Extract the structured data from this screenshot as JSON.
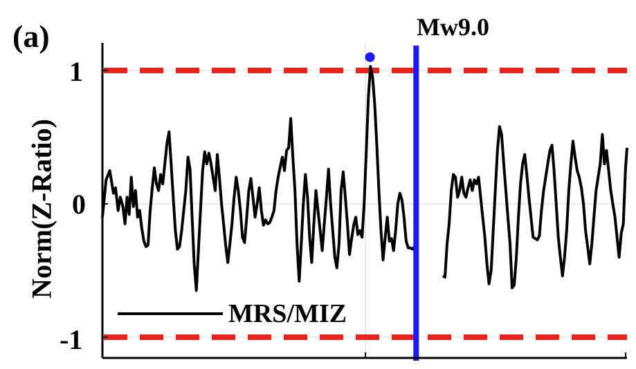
{
  "panel_label": "(a)",
  "event_label": "Mw9.0",
  "chart_data": {
    "type": "line",
    "ylabel": "Norm(Z-Ratio)",
    "ylim": [
      -1.1,
      1.2
    ],
    "yticks": [
      {
        "value": 1,
        "label": "1"
      },
      {
        "value": 0,
        "label": "0"
      },
      {
        "value": -1,
        "label": "-1"
      }
    ],
    "grid": true,
    "legend": {
      "label": "MRS/MIZ",
      "placement": "bottom-left"
    },
    "thresholds": [
      {
        "value": 1,
        "color": "#e8221c",
        "style": "dashed"
      },
      {
        "value": -1,
        "color": "#e8221c",
        "style": "dashed"
      }
    ],
    "event_marker": {
      "x": 0.598,
      "label": "Mw9.0",
      "color": "#1a1aff"
    },
    "peak_marker": {
      "x": 0.51,
      "y": 1.1,
      "color": "#1a1aff"
    },
    "series": [
      {
        "name": "MRS/MIZ",
        "color": "#000000",
        "segments": [
          [
            [
              0.0,
              -0.1
            ],
            [
              0.007,
              0.18
            ],
            [
              0.014,
              0.25
            ],
            [
              0.021,
              0.08
            ],
            [
              0.025,
              0.12
            ],
            [
              0.03,
              -0.05
            ],
            [
              0.034,
              0.05
            ],
            [
              0.039,
              -0.02
            ],
            [
              0.043,
              -0.15
            ],
            [
              0.047,
              0.05
            ],
            [
              0.051,
              -0.08
            ],
            [
              0.055,
              0.2
            ],
            [
              0.059,
              -0.02
            ],
            [
              0.063,
              0.1
            ],
            [
              0.067,
              -0.1
            ],
            [
              0.071,
              -0.05
            ],
            [
              0.075,
              -0.18
            ],
            [
              0.079,
              -0.28
            ],
            [
              0.083,
              -0.32
            ],
            [
              0.087,
              -0.31
            ],
            [
              0.091,
              -0.05
            ],
            [
              0.095,
              0.12
            ],
            [
              0.099,
              0.27
            ],
            [
              0.103,
              0.15
            ],
            [
              0.107,
              0.1
            ],
            [
              0.111,
              0.22
            ],
            [
              0.115,
              0.15
            ],
            [
              0.119,
              0.3
            ],
            [
              0.123,
              0.45
            ],
            [
              0.127,
              0.54
            ],
            [
              0.131,
              0.3
            ],
            [
              0.135,
              0.05
            ],
            [
              0.139,
              -0.2
            ],
            [
              0.143,
              -0.34
            ],
            [
              0.147,
              -0.32
            ],
            [
              0.151,
              -0.2
            ],
            [
              0.155,
              -0.05
            ],
            [
              0.159,
              0.1
            ],
            [
              0.163,
              0.35
            ],
            [
              0.167,
              0.26
            ],
            [
              0.171,
              -0.1
            ],
            [
              0.175,
              -0.45
            ],
            [
              0.179,
              -0.65
            ],
            [
              0.183,
              -0.35
            ],
            [
              0.187,
              -0.05
            ],
            [
              0.191,
              0.25
            ],
            [
              0.195,
              0.39
            ],
            [
              0.199,
              0.3
            ],
            [
              0.203,
              0.38
            ],
            [
              0.207,
              0.3
            ],
            [
              0.211,
              0.2
            ],
            [
              0.215,
              0.1
            ],
            [
              0.219,
              0.37
            ],
            [
              0.223,
              0.2
            ],
            [
              0.227,
              0.0
            ],
            [
              0.231,
              -0.15
            ],
            [
              0.235,
              -0.31
            ],
            [
              0.239,
              -0.44
            ],
            [
              0.243,
              -0.3
            ],
            [
              0.247,
              -0.15
            ],
            [
              0.251,
              0.05
            ],
            [
              0.255,
              0.2
            ],
            [
              0.259,
              0.1
            ],
            [
              0.263,
              -0.05
            ],
            [
              0.267,
              -0.25
            ],
            [
              0.271,
              -0.29
            ],
            [
              0.275,
              -0.1
            ],
            [
              0.279,
              0.1
            ],
            [
              0.283,
              0.19
            ],
            [
              0.287,
              0.05
            ],
            [
              0.291,
              -0.1
            ],
            [
              0.295,
              0.0
            ],
            [
              0.299,
              0.12
            ],
            [
              0.303,
              -0.05
            ],
            [
              0.307,
              -0.16
            ],
            [
              0.311,
              -0.12
            ],
            [
              0.315,
              -0.15
            ],
            [
              0.319,
              -0.14
            ],
            [
              0.323,
              -0.1
            ],
            [
              0.327,
              -0.05
            ],
            [
              0.331,
              0.1
            ],
            [
              0.335,
              0.2
            ],
            [
              0.339,
              0.28
            ],
            [
              0.343,
              0.35
            ],
            [
              0.347,
              0.25
            ],
            [
              0.351,
              0.4
            ],
            [
              0.355,
              0.42
            ],
            [
              0.359,
              0.64
            ],
            [
              0.363,
              0.35
            ],
            [
              0.367,
              0.1
            ],
            [
              0.371,
              -0.3
            ],
            [
              0.375,
              -0.58
            ],
            [
              0.379,
              -0.3
            ],
            [
              0.383,
              0.0
            ],
            [
              0.387,
              0.22
            ],
            [
              0.391,
              0.05
            ],
            [
              0.395,
              -0.25
            ],
            [
              0.399,
              -0.44
            ],
            [
              0.403,
              -0.15
            ],
            [
              0.407,
              0.1
            ],
            [
              0.411,
              -0.05
            ],
            [
              0.415,
              -0.2
            ],
            [
              0.419,
              -0.35
            ],
            [
              0.423,
              -0.15
            ],
            [
              0.427,
              0.05
            ],
            [
              0.431,
              0.26
            ],
            [
              0.435,
              0.0
            ],
            [
              0.439,
              -0.2
            ],
            [
              0.443,
              -0.4
            ],
            [
              0.447,
              -0.48
            ],
            [
              0.451,
              -0.3
            ],
            [
              0.455,
              0.1
            ],
            [
              0.459,
              0.24
            ],
            [
              0.463,
              0.05
            ],
            [
              0.467,
              -0.15
            ],
            [
              0.471,
              -0.38
            ],
            [
              0.475,
              -0.26
            ],
            [
              0.479,
              -0.16
            ],
            [
              0.483,
              -0.1
            ],
            [
              0.487,
              -0.23
            ],
            [
              0.491,
              -0.2
            ],
            [
              0.495,
              -0.25
            ],
            [
              0.499,
              0.0
            ],
            [
              0.503,
              0.4
            ],
            [
              0.507,
              0.8
            ],
            [
              0.511,
              1.03
            ],
            [
              0.515,
              0.95
            ],
            [
              0.519,
              0.75
            ],
            [
              0.523,
              0.45
            ],
            [
              0.527,
              0.1
            ],
            [
              0.531,
              -0.2
            ],
            [
              0.535,
              -0.42
            ],
            [
              0.539,
              -0.25
            ],
            [
              0.543,
              -0.1
            ],
            [
              0.547,
              -0.28
            ],
            [
              0.551,
              -0.26
            ],
            [
              0.555,
              -0.35
            ],
            [
              0.559,
              -0.2
            ],
            [
              0.563,
              0.0
            ],
            [
              0.567,
              0.08
            ],
            [
              0.571,
              0.03
            ],
            [
              0.575,
              -0.1
            ],
            [
              0.579,
              -0.28
            ],
            [
              0.583,
              -0.33
            ],
            [
              0.587,
              -0.33
            ],
            [
              0.591,
              -0.34
            ],
            [
              0.595,
              -0.32
            ]
          ],
          [
            [
              0.649,
              -0.54
            ],
            [
              0.653,
              -0.55
            ],
            [
              0.657,
              -0.3
            ],
            [
              0.661,
              -0.15
            ],
            [
              0.665,
              0.1
            ],
            [
              0.669,
              0.22
            ],
            [
              0.673,
              0.2
            ],
            [
              0.677,
              0.05
            ],
            [
              0.681,
              0.1
            ],
            [
              0.685,
              0.2
            ],
            [
              0.689,
              0.08
            ],
            [
              0.693,
              0.05
            ],
            [
              0.697,
              0.12
            ],
            [
              0.701,
              0.18
            ],
            [
              0.705,
              0.1
            ],
            [
              0.709,
              0.18
            ],
            [
              0.713,
              0.15
            ],
            [
              0.717,
              0.2
            ],
            [
              0.721,
              0.05
            ],
            [
              0.725,
              -0.1
            ],
            [
              0.729,
              -0.25
            ],
            [
              0.733,
              -0.45
            ],
            [
              0.737,
              -0.6
            ],
            [
              0.741,
              -0.5
            ],
            [
              0.745,
              -0.2
            ],
            [
              0.749,
              0.1
            ],
            [
              0.753,
              0.4
            ],
            [
              0.757,
              0.58
            ],
            [
              0.761,
              0.52
            ],
            [
              0.765,
              0.3
            ],
            [
              0.769,
              0.1
            ],
            [
              0.773,
              -0.1
            ],
            [
              0.777,
              -0.3
            ],
            [
              0.781,
              -0.63
            ],
            [
              0.785,
              -0.61
            ],
            [
              0.789,
              -0.4
            ],
            [
              0.793,
              -0.1
            ],
            [
              0.797,
              0.15
            ],
            [
              0.801,
              0.3
            ],
            [
              0.805,
              0.37
            ],
            [
              0.809,
              0.22
            ],
            [
              0.813,
              0.05
            ],
            [
              0.817,
              -0.1
            ],
            [
              0.821,
              -0.25
            ],
            [
              0.825,
              -0.26
            ],
            [
              0.829,
              -0.27
            ],
            [
              0.833,
              -0.24
            ],
            [
              0.837,
              -0.05
            ],
            [
              0.841,
              0.1
            ],
            [
              0.845,
              0.2
            ],
            [
              0.849,
              0.3
            ],
            [
              0.853,
              0.4
            ],
            [
              0.857,
              0.44
            ],
            [
              0.861,
              0.25
            ],
            [
              0.865,
              0.0
            ],
            [
              0.869,
              -0.25
            ],
            [
              0.873,
              -0.4
            ],
            [
              0.877,
              -0.54
            ],
            [
              0.881,
              -0.4
            ],
            [
              0.885,
              -0.2
            ],
            [
              0.889,
              0.1
            ],
            [
              0.893,
              0.3
            ],
            [
              0.897,
              0.47
            ],
            [
              0.901,
              0.35
            ],
            [
              0.905,
              0.25
            ],
            [
              0.909,
              0.2
            ],
            [
              0.913,
              0.12
            ],
            [
              0.917,
              0.0
            ],
            [
              0.921,
              -0.2
            ],
            [
              0.925,
              -0.32
            ],
            [
              0.929,
              -0.45
            ],
            [
              0.933,
              -0.3
            ],
            [
              0.937,
              -0.1
            ],
            [
              0.941,
              0.1
            ],
            [
              0.945,
              0.2
            ],
            [
              0.949,
              0.3
            ],
            [
              0.953,
              0.52
            ],
            [
              0.957,
              0.3
            ],
            [
              0.961,
              0.4
            ],
            [
              0.965,
              0.25
            ],
            [
              0.969,
              0.1
            ],
            [
              0.973,
              0.0
            ],
            [
              0.977,
              -0.1
            ],
            [
              0.981,
              -0.25
            ],
            [
              0.985,
              -0.4
            ],
            [
              0.989,
              -0.22
            ],
            [
              0.993,
              -0.15
            ],
            [
              0.997,
              0.25
            ],
            [
              1.0,
              0.42
            ]
          ]
        ]
      }
    ]
  }
}
